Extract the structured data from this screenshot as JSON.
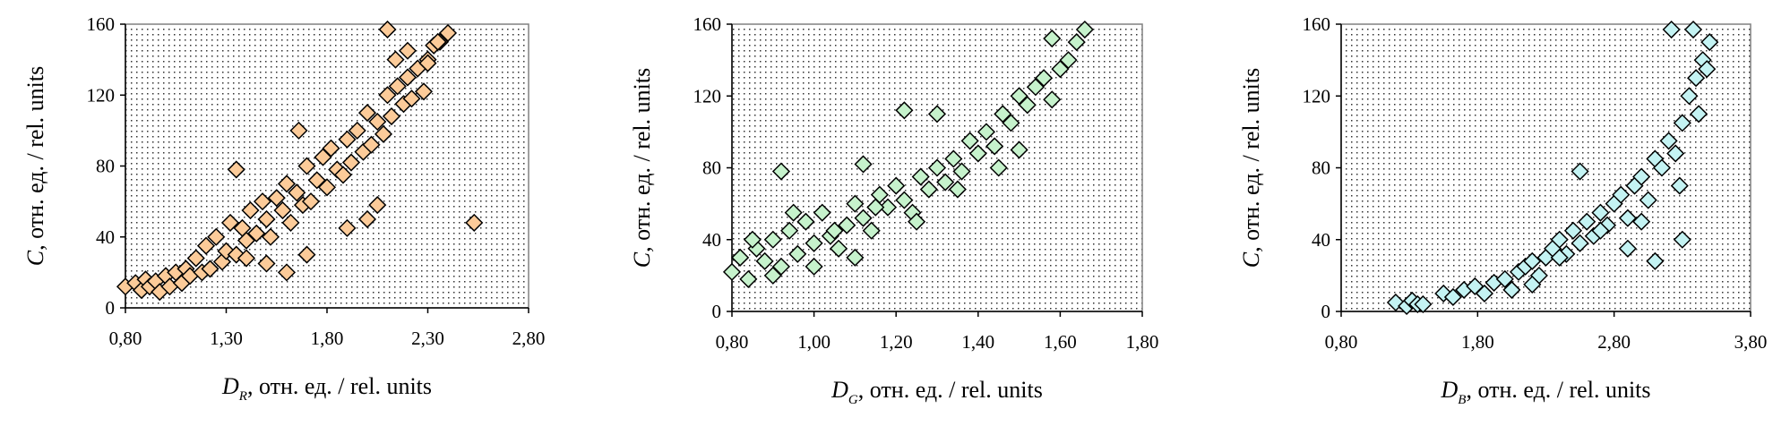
{
  "chart_data": [
    {
      "type": "scatter",
      "ylabel": {
        "var": "C",
        "rest": ", отн. ед. / rel. units"
      },
      "xlabel": {
        "var": "D",
        "sub": "R",
        "rest": ", отн. ед. / rel. units"
      },
      "xlim": [
        0.8,
        2.8
      ],
      "ylim": [
        0,
        160
      ],
      "xticks": [
        "0,80",
        "1,30",
        "1,80",
        "2,30",
        "2,80"
      ],
      "yticks": [
        "0",
        "40",
        "80",
        "120",
        "160"
      ],
      "marker": "diamond",
      "color": "#FCCB99",
      "grid": false,
      "series": [
        {
          "x": [
            0.8,
            0.85,
            0.88,
            0.9,
            0.92,
            0.95,
            0.97,
            1.0,
            1.02,
            1.05,
            1.08,
            1.1,
            1.12,
            1.15,
            1.18,
            1.2,
            1.22,
            1.25,
            1.28,
            1.3,
            1.32,
            1.35,
            1.38,
            1.4,
            1.42,
            1.45,
            1.48,
            1.5,
            1.52,
            1.55,
            1.58,
            1.6,
            1.62,
            1.65,
            1.68,
            1.7,
            1.72,
            1.75,
            1.78,
            1.8,
            1.82,
            1.85,
            1.88,
            1.9,
            1.92,
            1.95,
            1.98,
            2.0,
            2.02,
            2.05,
            2.08,
            2.1,
            2.12,
            2.15,
            2.18,
            2.2,
            2.22,
            2.25,
            2.28,
            2.3,
            2.33,
            2.36,
            2.4,
            2.1,
            2.14,
            2.2,
            2.3,
            2.35,
            1.66,
            1.35,
            2.05,
            2.0,
            2.53,
            1.5,
            1.7,
            1.9,
            1.4,
            1.6
          ],
          "y": [
            12,
            14,
            10,
            16,
            12,
            15,
            9,
            18,
            12,
            20,
            14,
            22,
            18,
            28,
            20,
            35,
            22,
            40,
            26,
            32,
            48,
            30,
            45,
            38,
            55,
            42,
            60,
            50,
            40,
            62,
            55,
            70,
            48,
            65,
            58,
            80,
            60,
            72,
            85,
            68,
            90,
            78,
            75,
            95,
            82,
            100,
            88,
            110,
            92,
            105,
            98,
            120,
            108,
            125,
            115,
            130,
            118,
            135,
            122,
            140,
            148,
            150,
            155,
            157,
            140,
            145,
            138,
            150,
            100,
            78,
            58,
            50,
            48,
            25,
            30,
            45,
            28,
            20
          ]
        }
      ]
    },
    {
      "type": "scatter",
      "ylabel": {
        "var": "C",
        "rest": ", отн. ед. / rel. units"
      },
      "xlabel": {
        "var": "D",
        "sub": "G",
        "rest": ", отн. ед. / rel. units"
      },
      "xlim": [
        0.8,
        1.8
      ],
      "ylim": [
        0,
        160
      ],
      "xticks": [
        "0,80",
        "1,00",
        "1,20",
        "1,40",
        "1,60",
        "1,80"
      ],
      "yticks": [
        "0",
        "40",
        "80",
        "120",
        "160"
      ],
      "marker": "diamond",
      "color": "#C6F2CC",
      "grid": false,
      "series": [
        {
          "x": [
            0.8,
            0.82,
            0.84,
            0.86,
            0.88,
            0.9,
            0.92,
            0.94,
            0.96,
            0.98,
            1.0,
            1.02,
            1.04,
            1.06,
            1.08,
            1.1,
            1.12,
            1.14,
            1.16,
            1.18,
            1.2,
            1.22,
            1.24,
            1.26,
            1.28,
            1.3,
            1.32,
            1.34,
            1.36,
            1.38,
            1.4,
            1.42,
            1.44,
            1.46,
            1.48,
            1.5,
            1.52,
            1.54,
            1.56,
            1.58,
            1.6,
            1.62,
            1.64,
            1.66,
            0.92,
            1.12,
            1.22,
            1.5,
            1.58,
            0.85,
            0.95,
            1.05,
            1.15,
            1.25,
            1.35,
            1.45,
            1.3,
            1.1,
            0.9,
            1.0
          ],
          "y": [
            22,
            30,
            18,
            35,
            28,
            40,
            25,
            45,
            32,
            50,
            38,
            55,
            42,
            35,
            48,
            60,
            52,
            45,
            65,
            58,
            70,
            62,
            55,
            75,
            68,
            80,
            72,
            85,
            78,
            95,
            88,
            100,
            92,
            110,
            105,
            120,
            115,
            125,
            130,
            118,
            135,
            140,
            150,
            157,
            78,
            82,
            112,
            90,
            152,
            40,
            55,
            45,
            58,
            50,
            68,
            80,
            110,
            30,
            20,
            25
          ]
        }
      ]
    },
    {
      "type": "scatter",
      "ylabel": {
        "var": "C",
        "rest": ", отн. ед. / rel. units"
      },
      "xlabel": {
        "var": "D",
        "sub": "B",
        "rest": ", отн. ед. / rel. units"
      },
      "xlim": [
        0.8,
        3.8
      ],
      "ylim": [
        0,
        160
      ],
      "xticks": [
        "0,80",
        "1,80",
        "2,80",
        "3,80"
      ],
      "yticks": [
        "0",
        "40",
        "80",
        "120",
        "160"
      ],
      "marker": "diamond",
      "color": "#C4F3F3",
      "grid": false,
      "series": [
        {
          "x": [
            1.2,
            1.28,
            1.32,
            1.36,
            1.4,
            1.55,
            1.62,
            1.7,
            1.78,
            1.85,
            1.92,
            2.0,
            2.05,
            2.1,
            2.15,
            2.2,
            2.25,
            2.3,
            2.35,
            2.4,
            2.45,
            2.5,
            2.55,
            2.6,
            2.65,
            2.7,
            2.75,
            2.8,
            2.85,
            2.9,
            2.95,
            3.0,
            3.05,
            3.1,
            3.15,
            3.2,
            3.25,
            3.3,
            3.35,
            3.4,
            3.45,
            3.5,
            3.22,
            3.38,
            3.48,
            2.55,
            2.4,
            2.7,
            3.0,
            3.3,
            2.2,
            2.9,
            3.1,
            3.28,
            3.42
          ],
          "y": [
            5,
            3,
            6,
            4,
            4,
            10,
            8,
            12,
            14,
            10,
            16,
            18,
            12,
            22,
            25,
            28,
            20,
            30,
            35,
            40,
            32,
            45,
            38,
            50,
            42,
            55,
            48,
            60,
            65,
            52,
            70,
            75,
            62,
            85,
            80,
            95,
            88,
            105,
            120,
            130,
            140,
            150,
            157,
            157,
            135,
            78,
            30,
            45,
            50,
            40,
            15,
            35,
            28,
            70,
            110
          ]
        }
      ]
    }
  ]
}
